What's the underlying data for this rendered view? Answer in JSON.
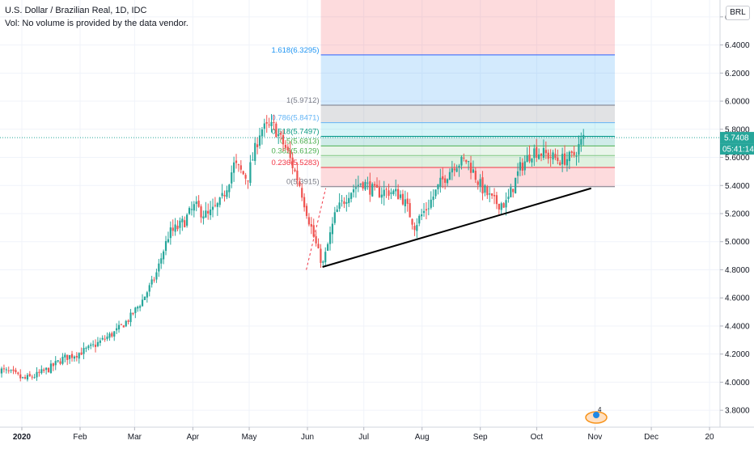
{
  "header": {
    "title": "U.S. Dollar / Brazilian Real, 1D, IDC",
    "volume_note": "Vol: No volume is provided by the data vendor."
  },
  "currency_button": "BRL",
  "last_price": "5.7408",
  "countdown": "05:41:14",
  "badge_count": "4",
  "colors": {
    "up": "#26a69a",
    "down": "#ef5350",
    "trendline": "#000000",
    "last_price_tag": "#26a69a",
    "fib_blue_label": "#2196f3",
    "fib_grey_label": "#787b86",
    "fib_green_label": "#4caf50",
    "fib_red_label": "#f23645"
  },
  "chart_data": {
    "type": "candlestick",
    "symbol": "USDBRL",
    "title": "U.S. Dollar / Brazilian Real, 1D, IDC",
    "x_ticks": [
      {
        "label": "2020",
        "date": "2020-01-01"
      },
      {
        "label": "Feb",
        "date": "2020-02-01"
      },
      {
        "label": "Mar",
        "date": "2020-03-01"
      },
      {
        "label": "Apr",
        "date": "2020-04-01"
      },
      {
        "label": "May",
        "date": "2020-05-01"
      },
      {
        "label": "Jun",
        "date": "2020-06-01"
      },
      {
        "label": "Jul",
        "date": "2020-07-01"
      },
      {
        "label": "Aug",
        "date": "2020-08-01"
      },
      {
        "label": "Sep",
        "date": "2020-09-01"
      },
      {
        "label": "Oct",
        "date": "2020-10-01"
      },
      {
        "label": "Nov",
        "date": "2020-11-01"
      },
      {
        "label": "Dec",
        "date": "2020-12-01"
      },
      {
        "label": "20",
        "date": "2021-01-01"
      }
    ],
    "y_ticks": [
      "3.8000",
      "4.0000",
      "4.2000",
      "4.4000",
      "4.6000",
      "4.8000",
      "5.0000",
      "5.2000",
      "5.4000",
      "5.6000",
      "5.8000",
      "6.0000",
      "6.2000",
      "6.4000",
      "6.6000"
    ],
    "ylim": [
      3.68,
      6.72
    ],
    "close_path": [
      [
        "2019-12-20",
        4.09
      ],
      [
        "2019-12-27",
        4.06
      ],
      [
        "2020-01-02",
        4.02
      ],
      [
        "2020-01-09",
        4.05
      ],
      [
        "2020-01-16",
        4.1
      ],
      [
        "2020-01-23",
        4.17
      ],
      [
        "2020-01-30",
        4.2
      ],
      [
        "2020-02-06",
        4.24
      ],
      [
        "2020-02-13",
        4.3
      ],
      [
        "2020-02-20",
        4.36
      ],
      [
        "2020-02-27",
        4.45
      ],
      [
        "2020-03-05",
        4.58
      ],
      [
        "2020-03-12",
        4.75
      ],
      [
        "2020-03-19",
        5.05
      ],
      [
        "2020-03-26",
        5.12
      ],
      [
        "2020-04-02",
        5.25
      ],
      [
        "2020-04-09",
        5.18
      ],
      [
        "2020-04-16",
        5.28
      ],
      [
        "2020-04-23",
        5.55
      ],
      [
        "2020-04-30",
        5.45
      ],
      [
        "2020-05-07",
        5.8
      ],
      [
        "2020-05-14",
        5.82
      ],
      [
        "2020-05-21",
        5.65
      ],
      [
        "2020-05-28",
        5.4
      ],
      [
        "2020-06-04",
        5.05
      ],
      [
        "2020-06-09",
        4.83
      ],
      [
        "2020-06-16",
        5.2
      ],
      [
        "2020-06-23",
        5.35
      ],
      [
        "2020-06-30",
        5.43
      ],
      [
        "2020-07-07",
        5.35
      ],
      [
        "2020-07-14",
        5.36
      ],
      [
        "2020-07-21",
        5.33
      ],
      [
        "2020-07-28",
        5.12
      ],
      [
        "2020-08-04",
        5.25
      ],
      [
        "2020-08-11",
        5.42
      ],
      [
        "2020-08-18",
        5.55
      ],
      [
        "2020-08-25",
        5.58
      ],
      [
        "2020-09-01",
        5.4
      ],
      [
        "2020-09-08",
        5.28
      ],
      [
        "2020-09-15",
        5.27
      ],
      [
        "2020-09-22",
        5.52
      ],
      [
        "2020-09-29",
        5.65
      ],
      [
        "2020-10-06",
        5.62
      ],
      [
        "2020-10-13",
        5.58
      ],
      [
        "2020-10-20",
        5.6
      ],
      [
        "2020-10-26",
        5.74
      ]
    ],
    "fibonacci_retracement": {
      "levels": [
        {
          "label": "0(5.3915)",
          "value": 5.3915
        },
        {
          "label": "0.236(5.5283)",
          "value": 5.5283
        },
        {
          "label": "0.382(5.6129)",
          "value": 5.6129
        },
        {
          "label": "0.5(5.6813)",
          "value": 5.6813
        },
        {
          "label": "0.618(5.7497)",
          "value": 5.7497
        },
        {
          "label": "0.786(5.8471)",
          "value": 5.8471
        },
        {
          "label": "1(5.9712)",
          "value": 5.9712
        },
        {
          "label": "1.618(6.3295)",
          "value": 6.3295
        }
      ],
      "x_range": [
        "2020-06-09",
        "2020-11-01"
      ]
    },
    "trendline": {
      "from": [
        "2020-06-09",
        4.82
      ],
      "to": [
        "2020-10-30",
        5.38
      ]
    },
    "last_price": 5.7408,
    "grid": true
  }
}
